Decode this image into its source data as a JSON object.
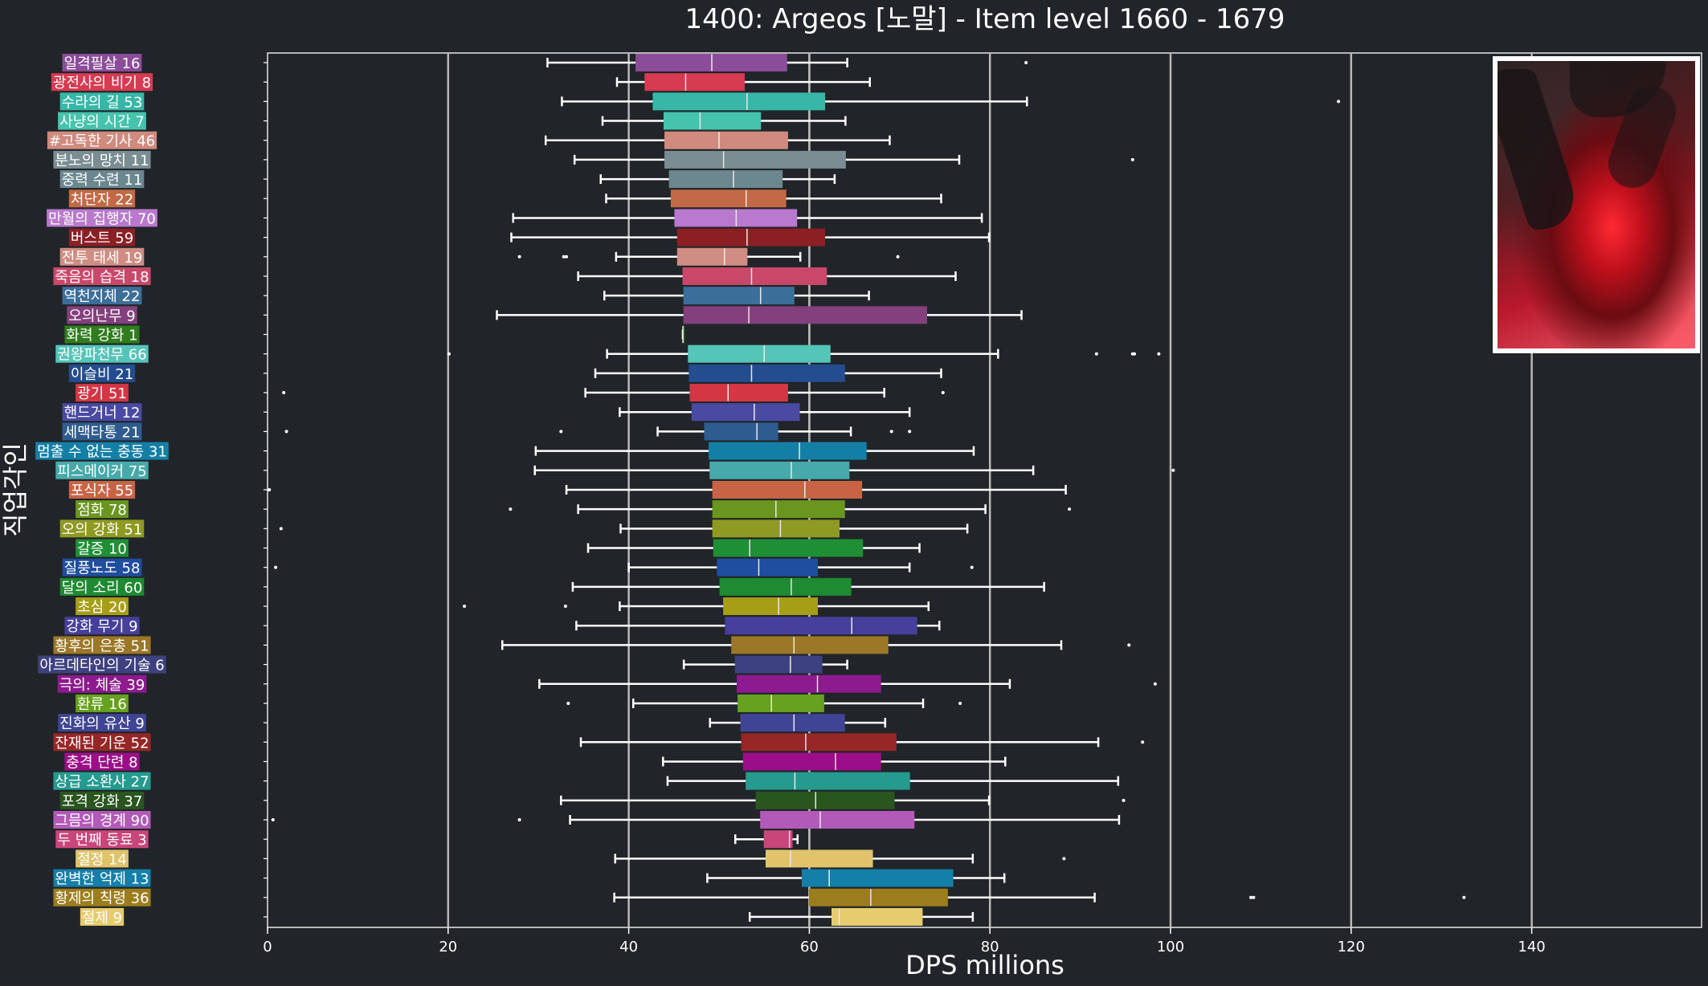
{
  "chart_data": {
    "type": "boxplot",
    "orientation": "horizontal",
    "title": "1400: Argeos [노말] - Item level 1660 - 1679",
    "xlabel": "DPS millions",
    "ylabel": "직업각인",
    "xlim": [
      0,
      159
    ],
    "xticks": [
      0,
      20,
      40,
      60,
      80,
      100,
      120,
      140
    ],
    "median_reference": 60,
    "grid": "vertical",
    "categories": [
      {
        "label": "일격필살 16",
        "color": "#8b4c99",
        "box": {
          "q1": 40.8,
          "median": 49.2,
          "q3": 57.5,
          "whislo": 31.0,
          "whishi": 64.2
        },
        "fliers": [
          84.0
        ]
      },
      {
        "label": "광전사의 비기 8",
        "color": "#d63b51",
        "box": {
          "q1": 41.8,
          "median": 46.3,
          "q3": 52.8,
          "whislo": 38.7,
          "whishi": 66.7
        },
        "fliers": []
      },
      {
        "label": "수라의 길 53",
        "color": "#36b7a8",
        "box": {
          "q1": 42.7,
          "median": 53.1,
          "q3": 61.7,
          "whislo": 32.6,
          "whishi": 84.1
        },
        "fliers": [
          118.6
        ]
      },
      {
        "label": "사냥의 시간 7",
        "color": "#45c3ac",
        "box": {
          "q1": 43.9,
          "median": 47.9,
          "q3": 54.6,
          "whislo": 37.1,
          "whishi": 64.0
        },
        "fliers": []
      },
      {
        "label": "#고독한 기사 46",
        "color": "#d08a7e",
        "box": {
          "q1": 44.0,
          "median": 50.0,
          "q3": 57.6,
          "whislo": 30.8,
          "whishi": 68.9
        },
        "fliers": []
      },
      {
        "label": "분노의 망치 11",
        "color": "#7a8d92",
        "box": {
          "q1": 44.0,
          "median": 50.5,
          "q3": 64.0,
          "whislo": 34.0,
          "whishi": 76.6
        },
        "fliers": [
          95.8
        ]
      },
      {
        "label": "중력 수련 11",
        "color": "#6b8790",
        "box": {
          "q1": 44.5,
          "median": 51.6,
          "q3": 57.0,
          "whislo": 36.9,
          "whishi": 62.8
        },
        "fliers": []
      },
      {
        "label": "처단자 22",
        "color": "#c26a45",
        "box": {
          "q1": 44.7,
          "median": 53.0,
          "q3": 57.4,
          "whislo": 37.5,
          "whishi": 74.6
        },
        "fliers": []
      },
      {
        "label": "만월의 집행자 70",
        "color": "#b979ce",
        "box": {
          "q1": 45.1,
          "median": 51.9,
          "q3": 58.6,
          "whislo": 27.2,
          "whishi": 79.1
        },
        "fliers": []
      },
      {
        "label": "버스트 59",
        "color": "#8c1f24",
        "box": {
          "q1": 45.4,
          "median": 53.1,
          "q3": 61.7,
          "whislo": 27.0,
          "whishi": 79.9
        },
        "fliers": []
      },
      {
        "label": "전투 태세 19",
        "color": "#cf8d83",
        "box": {
          "q1": 45.4,
          "median": 50.6,
          "q3": 53.1,
          "whislo": 38.6,
          "whishi": 59.0
        },
        "fliers": [
          27.9,
          32.8,
          33.1,
          69.8
        ]
      },
      {
        "label": "죽음의 습격 18",
        "color": "#c9486a",
        "box": {
          "q1": 46.0,
          "median": 53.6,
          "q3": 61.9,
          "whislo": 34.4,
          "whishi": 76.2
        },
        "fliers": []
      },
      {
        "label": "역천지체 22",
        "color": "#3c6e9a",
        "box": {
          "q1": 46.1,
          "median": 54.6,
          "q3": 58.3,
          "whislo": 37.3,
          "whishi": 66.6
        },
        "fliers": []
      },
      {
        "label": "오의난무 9",
        "color": "#83407d",
        "box": {
          "q1": 46.1,
          "median": 53.3,
          "q3": 73.0,
          "whislo": 25.4,
          "whishi": 83.5
        },
        "fliers": []
      },
      {
        "label": "화력 강화 1",
        "color": "#2f7d1d",
        "box": {
          "q1": 46.0,
          "median": 46.0,
          "q3": 46.0,
          "whislo": 46.0,
          "whishi": 46.0
        },
        "fliers": []
      },
      {
        "label": "권왕파천무 66",
        "color": "#55c5b8",
        "box": {
          "q1": 46.6,
          "median": 55.0,
          "q3": 62.3,
          "whislo": 37.6,
          "whishi": 80.9
        },
        "fliers": [
          20.1,
          91.8,
          95.8,
          96.0,
          98.7
        ]
      },
      {
        "label": "이슬비 21",
        "color": "#234d8f",
        "box": {
          "q1": 46.7,
          "median": 53.6,
          "q3": 63.9,
          "whislo": 36.3,
          "whishi": 74.6
        },
        "fliers": []
      },
      {
        "label": "광기 51",
        "color": "#d43644",
        "box": {
          "q1": 46.8,
          "median": 51.0,
          "q3": 57.6,
          "whislo": 35.2,
          "whishi": 68.3
        },
        "fliers": [
          1.8,
          74.8
        ]
      },
      {
        "label": "핸드거너 12",
        "color": "#4a4aa3",
        "box": {
          "q1": 47.0,
          "median": 53.9,
          "q3": 58.9,
          "whislo": 39.0,
          "whishi": 71.1
        },
        "fliers": []
      },
      {
        "label": "세맥타통 21",
        "color": "#2f5c8f",
        "box": {
          "q1": 48.4,
          "median": 54.2,
          "q3": 56.5,
          "whislo": 43.2,
          "whishi": 64.6
        },
        "fliers": [
          2.1,
          32.5,
          69.1,
          71.1
        ]
      },
      {
        "label": "멈출 수 없는 충동 31",
        "color": "#147fa6",
        "box": {
          "q1": 48.9,
          "median": 58.9,
          "q3": 66.3,
          "whislo": 29.7,
          "whishi": 78.2
        },
        "fliers": []
      },
      {
        "label": "피스메이커 75",
        "color": "#47a9aa",
        "box": {
          "q1": 49.0,
          "median": 58.0,
          "q3": 64.4,
          "whislo": 29.6,
          "whishi": 84.8
        },
        "fliers": [
          100.3
        ]
      },
      {
        "label": "포식자 55",
        "color": "#c86446",
        "box": {
          "q1": 49.3,
          "median": 59.5,
          "q3": 65.8,
          "whislo": 33.1,
          "whishi": 88.4
        },
        "fliers": [
          0.2
        ]
      },
      {
        "label": "점화 78",
        "color": "#6a961f",
        "box": {
          "q1": 49.3,
          "median": 56.3,
          "q3": 63.9,
          "whislo": 34.4,
          "whishi": 79.5
        },
        "fliers": [
          26.9,
          88.8
        ]
      },
      {
        "label": "오의 강화 51",
        "color": "#8e9a22",
        "box": {
          "q1": 49.3,
          "median": 56.8,
          "q3": 63.3,
          "whislo": 39.1,
          "whishi": 77.5
        },
        "fliers": [
          1.5
        ]
      },
      {
        "label": "갈증 10",
        "color": "#1f8f36",
        "box": {
          "q1": 49.4,
          "median": 53.4,
          "q3": 65.9,
          "whislo": 35.5,
          "whishi": 72.2
        },
        "fliers": []
      },
      {
        "label": "질풍노도 58",
        "color": "#1f4d9f",
        "box": {
          "q1": 49.8,
          "median": 54.4,
          "q3": 60.9,
          "whislo": 40.0,
          "whishi": 71.1
        },
        "fliers": [
          0.9,
          78.0
        ]
      },
      {
        "label": "달의 소리 60",
        "color": "#1e8a31",
        "box": {
          "q1": 50.1,
          "median": 58.0,
          "q3": 64.6,
          "whislo": 33.8,
          "whishi": 86.0
        },
        "fliers": []
      },
      {
        "label": "초심 20",
        "color": "#a69e16",
        "box": {
          "q1": 50.5,
          "median": 56.6,
          "q3": 60.9,
          "whislo": 39.0,
          "whishi": 73.2
        },
        "fliers": [
          21.8,
          33.0
        ]
      },
      {
        "label": "강화 무기 9",
        "color": "#463f9b",
        "box": {
          "q1": 50.7,
          "median": 64.7,
          "q3": 71.9,
          "whislo": 34.2,
          "whishi": 74.4
        },
        "fliers": []
      },
      {
        "label": "황후의 은총 51",
        "color": "#9c7727",
        "box": {
          "q1": 51.4,
          "median": 58.3,
          "q3": 68.7,
          "whislo": 26.0,
          "whishi": 87.9
        },
        "fliers": [
          95.4
        ]
      },
      {
        "label": "아르데타인의 기술 6",
        "color": "#3e417f",
        "box": {
          "q1": 51.8,
          "median": 57.9,
          "q3": 61.4,
          "whislo": 46.1,
          "whishi": 64.2
        },
        "fliers": []
      },
      {
        "label": "극의: 체술 39",
        "color": "#8d1a8e",
        "box": {
          "q1": 52.0,
          "median": 60.9,
          "q3": 67.9,
          "whislo": 30.1,
          "whishi": 82.2
        },
        "fliers": [
          98.3
        ]
      },
      {
        "label": "환류 16",
        "color": "#66a11f",
        "box": {
          "q1": 52.1,
          "median": 55.8,
          "q3": 61.6,
          "whislo": 40.5,
          "whishi": 72.6
        },
        "fliers": [
          33.3,
          76.7
        ]
      },
      {
        "label": "진화의 유산 9",
        "color": "#3f4494",
        "box": {
          "q1": 52.4,
          "median": 58.3,
          "q3": 63.9,
          "whislo": 49.0,
          "whishi": 68.4
        },
        "fliers": []
      },
      {
        "label": "잔재된 기운 52",
        "color": "#962726",
        "box": {
          "q1": 52.5,
          "median": 59.6,
          "q3": 69.6,
          "whislo": 34.7,
          "whishi": 92.0
        },
        "fliers": [
          96.9
        ]
      },
      {
        "label": "충격 단련 8",
        "color": "#9c0e87",
        "box": {
          "q1": 52.7,
          "median": 62.9,
          "q3": 67.9,
          "whislo": 43.8,
          "whishi": 81.7
        },
        "fliers": []
      },
      {
        "label": "상급 소환사 27",
        "color": "#259b90",
        "box": {
          "q1": 53.0,
          "median": 58.4,
          "q3": 71.1,
          "whislo": 44.3,
          "whishi": 94.2
        },
        "fliers": []
      },
      {
        "label": "포격 강화 37",
        "color": "#29561f",
        "box": {
          "q1": 54.1,
          "median": 60.7,
          "q3": 69.4,
          "whislo": 32.5,
          "whishi": 79.9
        },
        "fliers": [
          94.8
        ]
      },
      {
        "label": "그믐의 경계 90",
        "color": "#b25ab8",
        "box": {
          "q1": 54.6,
          "median": 61.2,
          "q3": 71.6,
          "whislo": 33.5,
          "whishi": 94.3
        },
        "fliers": [
          0.6,
          27.9
        ]
      },
      {
        "label": "두 번째 동료 3",
        "color": "#c9467a",
        "box": {
          "q1": 55.0,
          "median": 57.8,
          "q3": 58.1,
          "whislo": 51.8,
          "whishi": 58.7
        },
        "fliers": []
      },
      {
        "label": "절정 14",
        "color": "#e0c36a",
        "box": {
          "q1": 55.2,
          "median": 57.9,
          "q3": 67.0,
          "whislo": 38.5,
          "whishi": 78.1
        },
        "fliers": [
          88.2
        ]
      },
      {
        "label": "완벽한 억제 13",
        "color": "#147fa8",
        "box": {
          "q1": 59.2,
          "median": 62.2,
          "q3": 75.9,
          "whislo": 48.7,
          "whishi": 81.6
        },
        "fliers": []
      },
      {
        "label": "황제의 칙령 36",
        "color": "#9c7d1d",
        "box": {
          "q1": 60.0,
          "median": 66.8,
          "q3": 75.3,
          "whislo": 38.4,
          "whishi": 91.6
        },
        "fliers": [
          108.9,
          109.2,
          132.5
        ]
      },
      {
        "label": "절제 9",
        "color": "#e7cc6f",
        "box": {
          "q1": 62.5,
          "median": 63.3,
          "q3": 72.5,
          "whislo": 53.4,
          "whishi": 78.1
        },
        "fliers": []
      }
    ]
  },
  "portrait": {
    "icon": "argeos-dragon-portrait"
  }
}
